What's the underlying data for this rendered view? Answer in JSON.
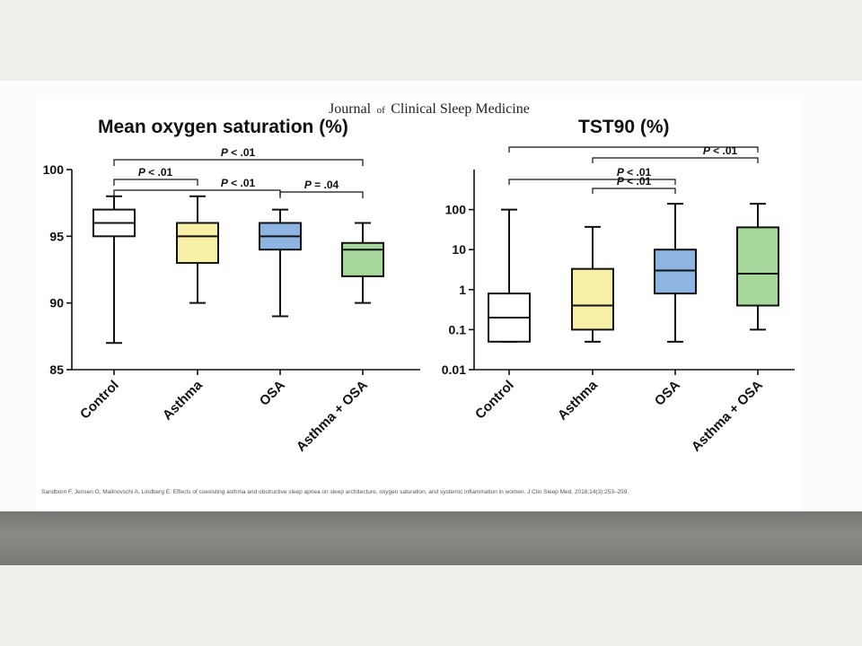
{
  "journal": {
    "prefix": "Journal",
    "of": "of",
    "suffix": "Clinical Sleep Medicine"
  },
  "citation": "Sandborn F, Jensen O, Malinovschi A, Lindberg E. Effects of coexisting asthma and obstructive sleep apnea on sleep architecture, oxygen saturation, and systemic inflammation in women. J Clin Sleep Med. 2018;14(3):253–259.",
  "chart_data": [
    {
      "type": "box",
      "title": "Mean oxygen saturation (%)",
      "scale": "linear",
      "ylim": [
        85,
        100
      ],
      "yticks": [
        85,
        90,
        95,
        100
      ],
      "ytick_labels": [
        "85",
        "90",
        "95",
        "100"
      ],
      "categories": [
        "Control",
        "Asthma",
        "OSA",
        "Asthma + OSA"
      ],
      "colors": [
        "#ffffff",
        "#f7f0a6",
        "#8db4e2",
        "#a7d89b"
      ],
      "boxes": [
        {
          "min": 87,
          "q1": 95,
          "median": 96,
          "q3": 97,
          "max": 98
        },
        {
          "min": 90,
          "q1": 93,
          "median": 95,
          "q3": 96,
          "max": 98
        },
        {
          "min": 89,
          "q1": 94,
          "median": 95,
          "q3": 96,
          "max": 97
        },
        {
          "min": 90,
          "q1": 92,
          "median": 94,
          "q3": 94.5,
          "max": 96
        }
      ],
      "comparisons": [
        {
          "from": 0,
          "to": 1,
          "label": "P < .01"
        },
        {
          "from": 0,
          "to": 2,
          "label": "P < .01"
        },
        {
          "from": 0,
          "to": 3,
          "label": "P < .01"
        },
        {
          "from": 2,
          "to": 3,
          "label": "P = .04"
        }
      ]
    },
    {
      "type": "box",
      "title": "TST90 (%)",
      "scale": "log",
      "ylim": [
        0.01,
        1000
      ],
      "yticks": [
        0.01,
        0.1,
        1,
        10,
        100
      ],
      "ytick_labels": [
        "0.01",
        "0.1",
        "1",
        "10",
        "100"
      ],
      "categories": [
        "Control",
        "Asthma",
        "OSA",
        "Asthma + OSA"
      ],
      "colors": [
        "#ffffff",
        "#f7f0a6",
        "#8db4e2",
        "#a7d89b"
      ],
      "boxes": [
        {
          "min": 0.05,
          "q1": 0.05,
          "median": 0.2,
          "q3": 0.8,
          "max": 100
        },
        {
          "min": 0.05,
          "q1": 0.1,
          "median": 0.4,
          "q3": 3.3,
          "max": 37
        },
        {
          "min": 0.05,
          "q1": 0.8,
          "median": 3,
          "q3": 10,
          "max": 140
        },
        {
          "min": 0.1,
          "q1": 0.4,
          "median": 2.5,
          "q3": 36,
          "max": 140
        }
      ],
      "comparisons": [
        {
          "from": 1,
          "to": 2,
          "label": "P < .01"
        },
        {
          "from": 0,
          "to": 2,
          "label": "P < .01"
        },
        {
          "from": 1,
          "to": 3,
          "label": "P < .01"
        },
        {
          "from": 0,
          "to": 3,
          "label": ""
        }
      ]
    }
  ]
}
